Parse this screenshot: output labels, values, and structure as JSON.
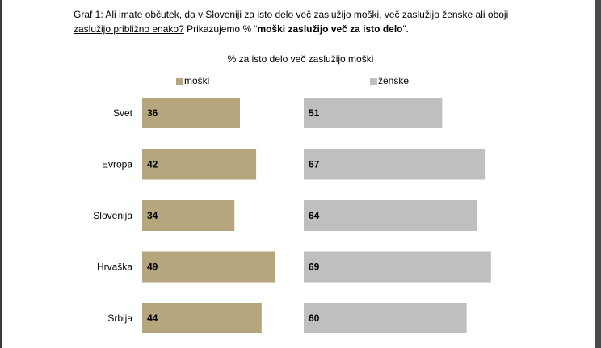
{
  "heading": {
    "line1_u": "Graf 1: Ali imate občutek, da v Sloveniji za isto delo več zaslužijo moški, več zaslužijo ženske ali oboji",
    "line2_u": "zaslužijo približno enako?",
    "line2_rest": " Prikazujemo % “",
    "line2_bold": "moški zaslužijo več za isto delo",
    "line2_end": "”."
  },
  "chart_data": {
    "type": "bar",
    "title": "% za isto delo več zaslužijo  moški",
    "categories": [
      "Svet",
      "Evropa",
      "Slovenija",
      "Hrvaška",
      "Srbija"
    ],
    "series": [
      {
        "name": "moški",
        "values": [
          36,
          42,
          34,
          49,
          44
        ],
        "color": "#b5a67e"
      },
      {
        "name": "ženske",
        "values": [
          51,
          67,
          64,
          69,
          60
        ],
        "color": "#bfbfbf"
      }
    ],
    "legend": "top",
    "grid": false
  }
}
